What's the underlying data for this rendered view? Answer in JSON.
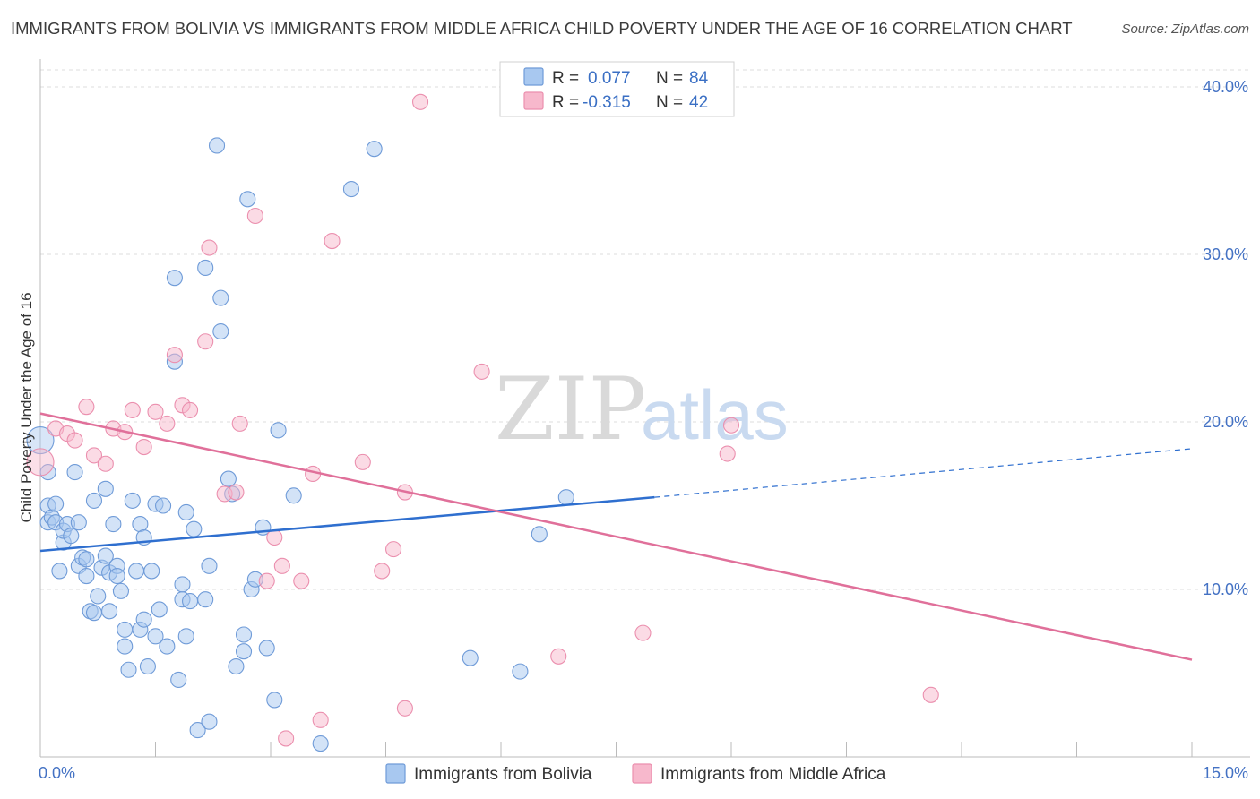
{
  "title": "IMMIGRANTS FROM BOLIVIA VS IMMIGRANTS FROM MIDDLE AFRICA CHILD POVERTY UNDER THE AGE OF 16 CORRELATION CHART",
  "source": "Source: ZipAtlas.com",
  "watermark": {
    "zip": "ZIP",
    "atlas": "atlas"
  },
  "legend": {
    "rows": [
      {
        "r_label": "R =",
        "r_value": "0.077",
        "n_label": "N =",
        "n_value": "84"
      },
      {
        "r_label": "R =",
        "r_value": "-0.315",
        "n_label": "N =",
        "n_value": "42"
      }
    ]
  },
  "bottom_legend": [
    "Immigrants from Bolivia",
    "Immigrants from Middle Africa"
  ],
  "colors": {
    "bolivia_fill": "#a8c8f0",
    "bolivia_stroke": "#6f9bd8",
    "bolivia_line": "#2f6fcf",
    "africa_fill": "#f7b8cc",
    "africa_stroke": "#eb8fae",
    "africa_line": "#e0709a",
    "grid": "#dddddd",
    "tick_text": "#4472c4"
  },
  "chart_data": {
    "type": "scatter",
    "xlabel": "",
    "ylabel": "Child Poverty Under the Age of 16",
    "xlim": [
      0,
      15
    ],
    "ylim": [
      0,
      41
    ],
    "x_tick_labels": [
      "0.0%",
      "15.0%"
    ],
    "y_ticks": [
      10,
      20,
      30,
      40
    ],
    "y_tick_labels": [
      "10.0%",
      "20.0%",
      "30.0%",
      "40.0%"
    ],
    "grid": true,
    "legend_position": "top-center",
    "series": [
      {
        "name": "Immigrants from Bolivia",
        "points": [
          [
            0.0,
            18.9
          ],
          [
            0.1,
            17.0
          ],
          [
            0.1,
            15.0
          ],
          [
            0.1,
            14.0
          ],
          [
            0.15,
            14.3
          ],
          [
            0.2,
            15.1
          ],
          [
            0.2,
            14.0
          ],
          [
            0.25,
            11.1
          ],
          [
            0.3,
            12.8
          ],
          [
            0.3,
            13.5
          ],
          [
            0.35,
            13.9
          ],
          [
            0.4,
            13.2
          ],
          [
            0.45,
            17.0
          ],
          [
            0.5,
            11.4
          ],
          [
            0.5,
            14.0
          ],
          [
            0.55,
            11.9
          ],
          [
            0.6,
            11.8
          ],
          [
            0.6,
            10.8
          ],
          [
            0.65,
            8.7
          ],
          [
            0.7,
            15.3
          ],
          [
            0.7,
            8.6
          ],
          [
            0.75,
            9.6
          ],
          [
            0.8,
            11.3
          ],
          [
            0.85,
            16.0
          ],
          [
            0.85,
            12.0
          ],
          [
            0.9,
            11.0
          ],
          [
            0.9,
            8.7
          ],
          [
            0.95,
            13.9
          ],
          [
            1.0,
            11.4
          ],
          [
            1.0,
            10.8
          ],
          [
            1.05,
            9.9
          ],
          [
            1.1,
            7.6
          ],
          [
            1.1,
            6.6
          ],
          [
            1.15,
            5.2
          ],
          [
            1.2,
            15.3
          ],
          [
            1.25,
            11.1
          ],
          [
            1.3,
            13.9
          ],
          [
            1.3,
            7.6
          ],
          [
            1.35,
            13.1
          ],
          [
            1.35,
            8.2
          ],
          [
            1.4,
            5.4
          ],
          [
            1.45,
            11.1
          ],
          [
            1.5,
            15.1
          ],
          [
            1.5,
            7.2
          ],
          [
            1.55,
            8.8
          ],
          [
            1.6,
            15.0
          ],
          [
            1.65,
            6.6
          ],
          [
            1.75,
            28.6
          ],
          [
            1.75,
            23.6
          ],
          [
            1.8,
            4.6
          ],
          [
            1.85,
            10.3
          ],
          [
            1.85,
            9.4
          ],
          [
            1.9,
            7.2
          ],
          [
            1.9,
            14.6
          ],
          [
            1.95,
            9.3
          ],
          [
            2.0,
            13.6
          ],
          [
            2.05,
            1.6
          ],
          [
            2.15,
            29.2
          ],
          [
            2.15,
            9.4
          ],
          [
            2.2,
            11.4
          ],
          [
            2.2,
            2.1
          ],
          [
            2.3,
            36.5
          ],
          [
            2.35,
            25.4
          ],
          [
            2.35,
            27.4
          ],
          [
            2.45,
            16.6
          ],
          [
            2.5,
            15.7
          ],
          [
            2.55,
            5.4
          ],
          [
            2.65,
            7.3
          ],
          [
            2.65,
            6.3
          ],
          [
            2.7,
            33.3
          ],
          [
            2.75,
            10.0
          ],
          [
            2.8,
            10.6
          ],
          [
            2.9,
            13.7
          ],
          [
            2.95,
            6.5
          ],
          [
            3.05,
            3.4
          ],
          [
            3.1,
            19.5
          ],
          [
            3.3,
            15.6
          ],
          [
            3.65,
            0.8
          ],
          [
            4.05,
            33.9
          ],
          [
            4.35,
            36.3
          ],
          [
            5.6,
            5.9
          ],
          [
            6.25,
            5.1
          ],
          [
            6.5,
            13.3
          ],
          [
            6.85,
            15.5
          ]
        ],
        "trend": {
          "x": [
            0,
            8.0
          ],
          "y": [
            12.3,
            15.5
          ],
          "extended_x": [
            8.0,
            15.0
          ],
          "extended_y": [
            15.5,
            18.4
          ]
        }
      },
      {
        "name": "Immigrants from Middle Africa",
        "points": [
          [
            0.0,
            17.6
          ],
          [
            0.2,
            19.6
          ],
          [
            0.35,
            19.3
          ],
          [
            0.45,
            18.9
          ],
          [
            0.6,
            20.9
          ],
          [
            0.7,
            18.0
          ],
          [
            0.85,
            17.5
          ],
          [
            0.95,
            19.6
          ],
          [
            1.1,
            19.4
          ],
          [
            1.2,
            20.7
          ],
          [
            1.35,
            18.5
          ],
          [
            1.5,
            20.6
          ],
          [
            1.65,
            19.9
          ],
          [
            1.75,
            24.0
          ],
          [
            1.85,
            21.0
          ],
          [
            1.95,
            20.7
          ],
          [
            2.15,
            24.8
          ],
          [
            2.2,
            30.4
          ],
          [
            2.4,
            15.7
          ],
          [
            2.55,
            15.8
          ],
          [
            2.6,
            19.9
          ],
          [
            2.8,
            32.3
          ],
          [
            2.95,
            10.5
          ],
          [
            3.05,
            13.1
          ],
          [
            3.15,
            11.4
          ],
          [
            3.2,
            1.1
          ],
          [
            3.4,
            10.5
          ],
          [
            3.55,
            16.9
          ],
          [
            3.65,
            2.2
          ],
          [
            3.8,
            30.8
          ],
          [
            4.2,
            17.6
          ],
          [
            4.45,
            11.1
          ],
          [
            4.6,
            12.4
          ],
          [
            4.75,
            2.9
          ],
          [
            4.75,
            15.8
          ],
          [
            4.95,
            39.1
          ],
          [
            5.75,
            23.0
          ],
          [
            6.75,
            6.0
          ],
          [
            7.85,
            7.4
          ],
          [
            9.0,
            19.8
          ],
          [
            8.95,
            18.1
          ],
          [
            11.6,
            3.7
          ]
        ],
        "trend": {
          "x": [
            0,
            15.0
          ],
          "y": [
            20.5,
            5.8
          ]
        }
      }
    ]
  }
}
